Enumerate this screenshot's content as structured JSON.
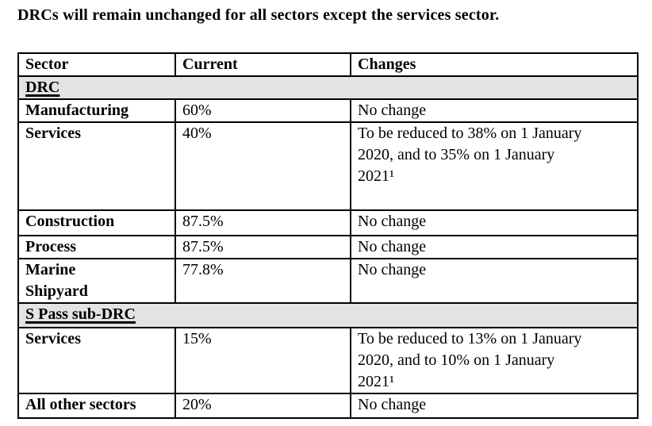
{
  "page": {
    "title": "DRCs will remain unchanged for all sectors except the services sector."
  },
  "colors": {
    "page_bg": "#ffffff",
    "text": "#000000",
    "border": "#000000",
    "section_row_bg": "#e3e3e3"
  },
  "table": {
    "columns": [
      "Sector",
      "Current",
      "Changes"
    ],
    "rows": [
      {
        "type": "section",
        "label": "DRC"
      },
      {
        "type": "data",
        "sector": "Manufacturing",
        "current": "60%",
        "changes": "No change"
      },
      {
        "type": "data",
        "sector": "Services",
        "current": "40%",
        "changes": "To be reduced to 38% on 1 January\n2020, and to 35% on 1 January\n2021¹"
      },
      {
        "type": "data",
        "sector": "Construction",
        "current": "87.5%",
        "changes": "No change"
      },
      {
        "type": "data",
        "sector": "Process",
        "current": "87.5%",
        "changes": "No change"
      },
      {
        "type": "data",
        "sector": "Marine\nShipyard",
        "current": "77.8%",
        "changes": "No change"
      },
      {
        "type": "section",
        "label": "S Pass sub-DRC"
      },
      {
        "type": "data",
        "sector": "Services",
        "current": "15%",
        "changes": "To be reduced to 13% on 1 January\n2020, and to 10% on 1 January\n2021¹"
      },
      {
        "type": "data",
        "sector": "All other sectors",
        "current": "20%",
        "changes": "No change"
      }
    ]
  }
}
